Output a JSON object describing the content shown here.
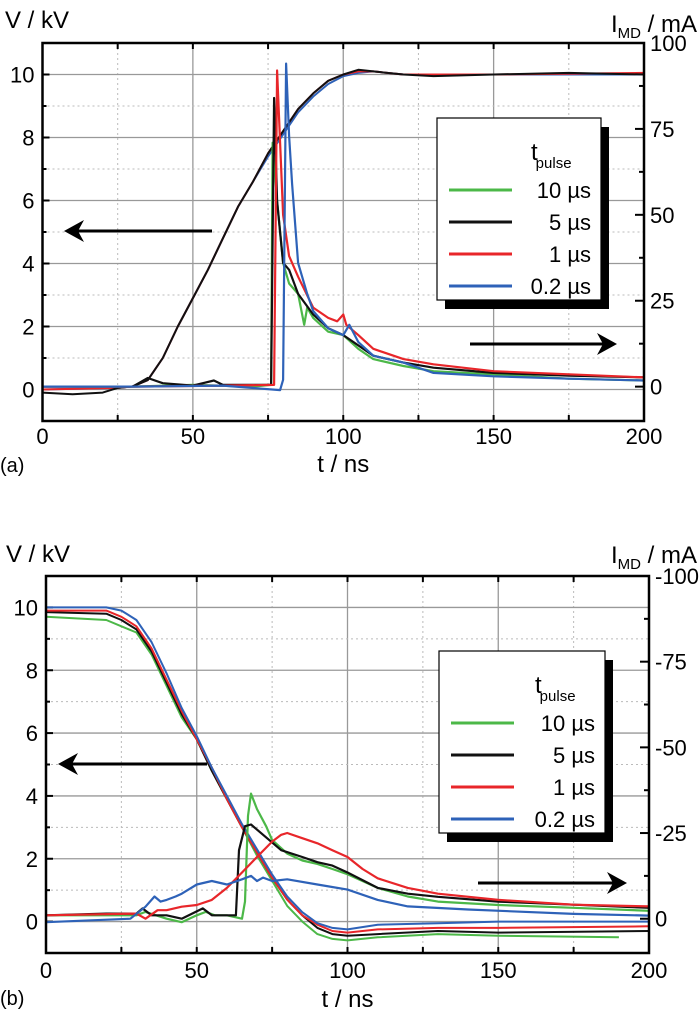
{
  "chart_data": [
    {
      "panel_label": "(a)",
      "type": "line",
      "xlabel": "t / ns",
      "ylabel_left": "V / kV",
      "ylabel_right": "I",
      "ylabel_right_sub": "MD",
      "ylabel_right_unit": " / mA",
      "xlim": [
        0,
        200
      ],
      "xticks": [
        0,
        50,
        100,
        150,
        200
      ],
      "ylim_left": [
        -1,
        11
      ],
      "yticks_left": [
        0,
        2,
        4,
        6,
        8,
        10
      ],
      "ylim_right": [
        -10,
        100
      ],
      "yticks_right": [
        0,
        25,
        50,
        75,
        100
      ],
      "grid": true,
      "legend": {
        "title": "t",
        "title_sub": "pulse",
        "placement": "right",
        "entries": [
          "10 µs",
          "5 µs",
          "1 µs",
          "0.2 µs"
        ]
      },
      "colors": {
        "10 µs": "#4cb848",
        "5 µs": "#111111",
        "1 µs": "#e8262a",
        "0.2 µs": "#2e62b8"
      },
      "voltage_series": [
        {
          "name": "0.2 µs",
          "axis": "left",
          "t": [
            0,
            25,
            30,
            35,
            40,
            45,
            50,
            55,
            60,
            65,
            70,
            75,
            80,
            85,
            90,
            95,
            100,
            105,
            110,
            120,
            150,
            200
          ],
          "v": [
            0,
            0.05,
            0.1,
            0.3,
            1.0,
            2.0,
            2.9,
            3.8,
            4.8,
            5.8,
            6.6,
            7.4,
            8.1,
            8.8,
            9.3,
            9.7,
            9.95,
            10.05,
            10.1,
            10.0,
            10.0,
            10.0
          ]
        },
        {
          "name": "1 µs",
          "axis": "left",
          "t": [
            0,
            25,
            30,
            35,
            40,
            45,
            50,
            55,
            60,
            65,
            70,
            75,
            80,
            85,
            90,
            95,
            100,
            105,
            110,
            120,
            150,
            200
          ],
          "v": [
            0,
            0.05,
            0.1,
            0.3,
            1.0,
            2.0,
            2.9,
            3.8,
            4.8,
            5.8,
            6.6,
            7.5,
            8.2,
            8.9,
            9.4,
            9.8,
            10.0,
            10.1,
            10.1,
            10.0,
            10.0,
            10.05
          ]
        },
        {
          "name": "5 µs",
          "axis": "left",
          "t": [
            0,
            10,
            20,
            25,
            30,
            35,
            40,
            45,
            50,
            55,
            60,
            65,
            70,
            75,
            80,
            85,
            90,
            95,
            100,
            105,
            110,
            120,
            130,
            150,
            175,
            200
          ],
          "v": [
            -0.1,
            -0.15,
            -0.1,
            0.05,
            0.1,
            0.3,
            1.0,
            2.0,
            2.9,
            3.8,
            4.8,
            5.8,
            6.6,
            7.5,
            8.2,
            8.9,
            9.4,
            9.8,
            10.0,
            10.15,
            10.1,
            10.0,
            9.95,
            10.0,
            10.05,
            10.0
          ]
        }
      ],
      "current_series": [
        {
          "name": "10 µs",
          "axis": "right",
          "t": [
            0,
            30,
            50,
            70,
            76,
            76.5,
            78,
            80,
            82,
            85,
            87,
            88,
            90,
            95,
            100,
            105,
            110,
            120,
            130,
            140,
            150,
            175,
            200
          ],
          "i_mA": [
            0,
            0,
            0.5,
            0,
            0.5,
            71,
            54,
            36,
            30,
            27,
            18,
            23,
            20,
            16,
            15,
            11,
            8,
            6,
            4.5,
            4,
            3.6,
            2.3,
            1.8
          ]
        },
        {
          "name": "5 µs",
          "axis": "right",
          "t": [
            30,
            35,
            40,
            50,
            57,
            60,
            70,
            76,
            77,
            78,
            80,
            82,
            85,
            90,
            95,
            100,
            110,
            120,
            130,
            150,
            175,
            200
          ],
          "i_mA": [
            0,
            2.5,
            1,
            0.3,
            1.8,
            0.5,
            0.5,
            0.5,
            84,
            54,
            36,
            34,
            27,
            21,
            17,
            15,
            9,
            7,
            5.5,
            4,
            3.2,
            2.7
          ]
        },
        {
          "name": "1 µs",
          "axis": "right",
          "t": [
            0,
            30,
            60,
            77,
            78,
            80,
            82,
            85,
            90,
            95,
            98,
            100,
            101,
            105,
            110,
            120,
            130,
            150,
            175,
            200
          ],
          "i_mA": [
            0,
            0,
            0.3,
            0.5,
            92,
            50,
            38,
            32,
            23,
            20,
            19,
            21,
            18,
            15,
            11,
            8,
            6.5,
            4.5,
            3.6,
            2.7
          ]
        },
        {
          "name": "0.2 µs",
          "axis": "right",
          "t": [
            0,
            30,
            60,
            79,
            80,
            81,
            82,
            83,
            85,
            88,
            90,
            95,
            100,
            102,
            105,
            110,
            120,
            130,
            150,
            175,
            200
          ],
          "i_mA": [
            0,
            0,
            0.3,
            -1,
            2,
            94,
            73,
            59,
            36,
            27,
            22,
            17,
            15,
            18,
            13,
            9,
            7,
            4,
            3,
            2.3,
            1.8
          ]
        }
      ]
    },
    {
      "panel_label": "(b)",
      "type": "line",
      "xlabel": "t / ns",
      "ylabel_left": "V / kV",
      "ylabel_right": "I",
      "ylabel_right_sub": "MD",
      "ylabel_right_unit": " / mA",
      "xlim": [
        0,
        200
      ],
      "xticks": [
        0,
        50,
        100,
        150,
        200
      ],
      "ylim_left": [
        -1,
        11
      ],
      "yticks_left": [
        0,
        2,
        4,
        6,
        8,
        10
      ],
      "ylim_right": [
        10,
        -100
      ],
      "yticks_right": [
        0,
        -25,
        -50,
        -75,
        -100
      ],
      "grid": true,
      "legend": {
        "title": "t",
        "title_sub": "pulse",
        "placement": "right",
        "entries": [
          "10 µs",
          "5 µs",
          "1 µs",
          "0.2 µs"
        ]
      },
      "colors": {
        "10 µs": "#4cb848",
        "5 µs": "#111111",
        "1 µs": "#e8262a",
        "0.2 µs": "#2e62b8"
      },
      "voltage_series": [
        {
          "name": "10 µs",
          "axis": "left",
          "t": [
            0,
            20,
            25,
            30,
            35,
            40,
            45,
            50,
            55,
            60,
            65,
            70,
            75,
            80,
            85,
            90,
            95,
            100,
            110,
            130,
            150,
            190
          ],
          "v": [
            9.7,
            9.6,
            9.4,
            9.2,
            8.5,
            7.5,
            6.5,
            5.8,
            4.8,
            3.9,
            3.0,
            2.1,
            1.3,
            0.5,
            0.0,
            -0.4,
            -0.55,
            -0.6,
            -0.5,
            -0.4,
            -0.45,
            -0.5
          ]
        },
        {
          "name": "5 µs",
          "axis": "left",
          "t": [
            0,
            20,
            25,
            30,
            35,
            40,
            45,
            50,
            55,
            60,
            65,
            70,
            75,
            80,
            85,
            90,
            95,
            100,
            110,
            130,
            150,
            200
          ],
          "v": [
            9.85,
            9.8,
            9.6,
            9.3,
            8.6,
            7.6,
            6.6,
            5.8,
            4.8,
            3.9,
            3.0,
            2.2,
            1.4,
            0.7,
            0.2,
            -0.2,
            -0.4,
            -0.45,
            -0.4,
            -0.3,
            -0.35,
            -0.3
          ]
        },
        {
          "name": "1 µs",
          "axis": "left",
          "t": [
            0,
            20,
            25,
            30,
            35,
            40,
            45,
            50,
            55,
            60,
            65,
            70,
            75,
            80,
            85,
            90,
            95,
            100,
            110,
            130,
            150,
            200
          ],
          "v": [
            9.9,
            9.9,
            9.7,
            9.4,
            8.7,
            7.7,
            6.7,
            5.8,
            4.9,
            3.9,
            3.0,
            2.2,
            1.4,
            0.7,
            0.2,
            -0.1,
            -0.3,
            -0.35,
            -0.25,
            -0.2,
            -0.2,
            -0.15
          ]
        },
        {
          "name": "0.2 µs",
          "axis": "left",
          "t": [
            0,
            20,
            25,
            30,
            35,
            40,
            45,
            50,
            55,
            60,
            65,
            70,
            75,
            80,
            85,
            90,
            95,
            100,
            110,
            130,
            150,
            200
          ],
          "v": [
            10.0,
            10.0,
            9.9,
            9.6,
            8.9,
            7.9,
            6.8,
            5.9,
            4.9,
            4.0,
            3.1,
            2.3,
            1.5,
            0.8,
            0.3,
            -0.05,
            -0.2,
            -0.25,
            -0.1,
            -0.05,
            0.0,
            0.0
          ]
        }
      ],
      "current_series": [
        {
          "name": "10 µs",
          "axis": "right",
          "t": [
            0,
            30,
            33,
            40,
            45,
            50,
            53,
            56,
            60,
            65,
            66,
            67,
            68,
            70,
            73,
            75,
            80,
            85,
            90,
            95,
            100,
            110,
            120,
            130,
            150,
            175,
            200
          ],
          "i_mA": [
            -1,
            -1,
            -2,
            0,
            1,
            -1,
            -2,
            -1,
            -1,
            0,
            -5,
            -30,
            -36.5,
            -32,
            -27,
            -23,
            -19,
            -17,
            -16,
            -14.5,
            -13,
            -9,
            -6.5,
            -5,
            -4,
            -3.2,
            -2.3
          ]
        },
        {
          "name": "5 µs",
          "axis": "right",
          "t": [
            0,
            20,
            30,
            32,
            35,
            40,
            45,
            52,
            55,
            60,
            63,
            64,
            66,
            68,
            72,
            78,
            85,
            90,
            95,
            100,
            110,
            120,
            130,
            150,
            175,
            200
          ],
          "i_mA": [
            -1,
            -1.5,
            -1.5,
            -3,
            -1,
            -1,
            0,
            -3,
            -1,
            -1,
            -1,
            -20,
            -27,
            -27.5,
            -24.5,
            -20,
            -18,
            -16.5,
            -15.5,
            -13.5,
            -9,
            -7.3,
            -6.4,
            -5,
            -4.1,
            -3.2
          ]
        },
        {
          "name": "1 µs",
          "axis": "right",
          "t": [
            0,
            30,
            33,
            37,
            40,
            45,
            50,
            55,
            60,
            65,
            70,
            75,
            78,
            80,
            85,
            90,
            95,
            100,
            105,
            110,
            120,
            130,
            150,
            175,
            200
          ],
          "i_mA": [
            -1,
            -1.5,
            0,
            -2.5,
            -2.5,
            -3.5,
            -4,
            -5.5,
            -9,
            -13.5,
            -18,
            -22.5,
            -24.5,
            -25,
            -23.5,
            -22,
            -20,
            -18,
            -14.5,
            -11.8,
            -9,
            -7.3,
            -5.5,
            -4.1,
            -3.6
          ]
        },
        {
          "name": "0.2 µs",
          "axis": "right",
          "t": [
            0,
            28,
            33,
            36,
            38,
            40,
            43,
            45,
            50,
            55,
            60,
            65,
            68,
            70,
            72,
            75,
            80,
            90,
            100,
            110,
            120,
            140,
            175,
            200
          ],
          "i_mA": [
            1,
            0,
            -3.5,
            -6.5,
            -5,
            -5.5,
            -6.5,
            -7.3,
            -10,
            -11,
            -10,
            -11.5,
            -12.5,
            -11,
            -12,
            -11,
            -11.5,
            -10,
            -8.5,
            -5.5,
            -3.6,
            -2.7,
            -1.4,
            -0.9
          ]
        }
      ]
    }
  ]
}
